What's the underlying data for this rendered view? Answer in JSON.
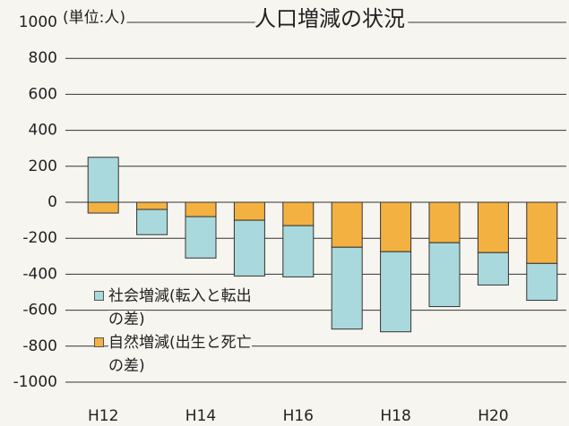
{
  "chart_data": {
    "type": "bar",
    "stacked": true,
    "title": "人口増減の状況",
    "unit_label": "(単位:人)",
    "categories": [
      "H12",
      null,
      "H14",
      null,
      "H16",
      null,
      "H18",
      null,
      "H20",
      null
    ],
    "series": [
      {
        "name": "社会増減(転入と転出の差)",
        "color": "#a9d9dc",
        "values": [
          250,
          -140,
          -230,
          -310,
          -285,
          -455,
          -445,
          -355,
          -180,
          -205
        ]
      },
      {
        "name": "自然増減(出生と死亡の差)",
        "color": "#f3b142",
        "values": [
          -60,
          -40,
          -80,
          -100,
          -130,
          -250,
          -275,
          -225,
          -280,
          -340
        ]
      }
    ],
    "ylim": [
      -1000,
      1000
    ],
    "yticks": [
      -1000,
      -800,
      -600,
      -400,
      -200,
      0,
      200,
      400,
      600,
      800,
      1000
    ],
    "grid": true
  }
}
